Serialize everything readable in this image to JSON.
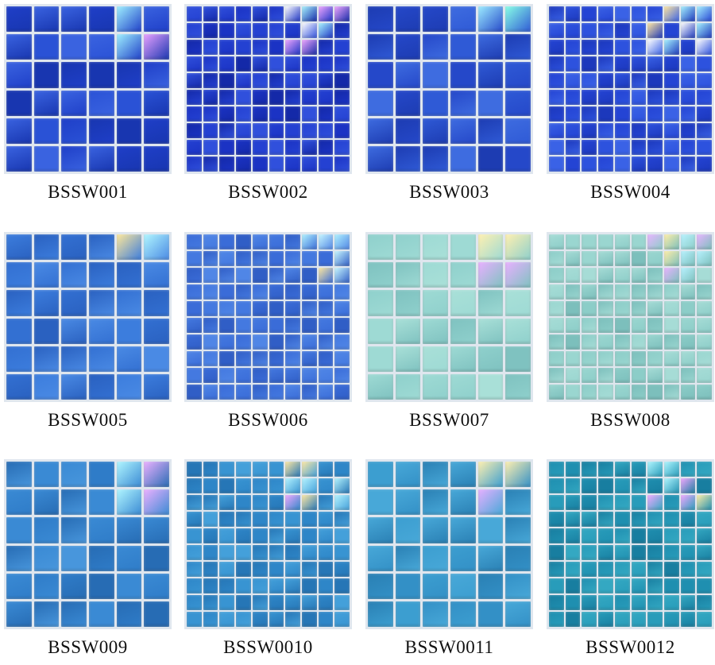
{
  "products": [
    {
      "code": "BSSW001",
      "grid": 6,
      "colors": [
        "#1f3fc8",
        "#2a52d6",
        "#1836b0",
        "#3a63e0"
      ],
      "iridescent": [
        "#9ef0ff",
        "#e8a0ff",
        "#7dffe0"
      ],
      "accent": "top-right"
    },
    {
      "code": "BSSW002",
      "grid": 10,
      "colors": [
        "#1b33c4",
        "#2441d2",
        "#1429a8",
        "#3050dc"
      ],
      "iridescent": [
        "#a8f4ff",
        "#f0a6ff",
        "#ffffff"
      ],
      "accent": "top-right"
    },
    {
      "code": "BSSW003",
      "grid": 6,
      "colors": [
        "#2548c9",
        "#2f5ad6",
        "#1d3cb2",
        "#3e6ce0"
      ],
      "iridescent": [
        "#9cecff",
        "#e6a2ff",
        "#88ffe6"
      ],
      "accent": "top-right"
    },
    {
      "code": "BSSW004",
      "grid": 10,
      "colors": [
        "#2444d4",
        "#2d52de",
        "#1c38bc",
        "#3a62e6"
      ],
      "iridescent": [
        "#ffffff",
        "#a6f2ff",
        "#ffe6a0"
      ],
      "accent": "top-right"
    },
    {
      "code": "BSSW005",
      "grid": 6,
      "colors": [
        "#3370d2",
        "#3c7ddd",
        "#2a61c0",
        "#4a8ae4"
      ],
      "iridescent": [
        "#b0f6ff",
        "#ffe89a",
        "#9ef8ff"
      ],
      "accent": "top-right"
    },
    {
      "code": "BSSW006",
      "grid": 10,
      "colors": [
        "#3a6cd8",
        "#4479e0",
        "#305ec6",
        "#5086e6"
      ],
      "iridescent": [
        "#c8f8ff",
        "#ffe9a0",
        "#b0f2ff"
      ],
      "accent": "top-right"
    },
    {
      "code": "BSSW007",
      "grid": 6,
      "colors": [
        "#8fd0cc",
        "#9edad4",
        "#7fc2c0",
        "#a9e0d8"
      ],
      "iridescent": [
        "#e8b0ff",
        "#fff0b0",
        "#b6f2ff"
      ],
      "accent": "top-right"
    },
    {
      "code": "BSSW008",
      "grid": 10,
      "colors": [
        "#8ccdc8",
        "#9ad6d0",
        "#7cbfbc",
        "#a6dcd6"
      ],
      "iridescent": [
        "#b8f2ff",
        "#ffeea8",
        "#e8b4ff"
      ],
      "accent": "top-right"
    },
    {
      "code": "BSSW009",
      "grid": 6,
      "colors": [
        "#2f7cc8",
        "#3a8ad4",
        "#276cb4",
        "#4896dc"
      ],
      "iridescent": [
        "#fff2a8",
        "#ecb0ff",
        "#b0f6ff"
      ],
      "accent": "top-right"
    },
    {
      "code": "BSSW0010",
      "grid": 10,
      "colors": [
        "#2e86c8",
        "#3894d2",
        "#2676b6",
        "#44a0da"
      ],
      "iridescent": [
        "#ffe9a4",
        "#f0a8ff",
        "#b4f4ff"
      ],
      "accent": "top-right"
    },
    {
      "code": "BSSW0011",
      "grid": 6,
      "colors": [
        "#3390c6",
        "#3c9ed0",
        "#2a80b4",
        "#48a8d8"
      ],
      "iridescent": [
        "#b6f8ff",
        "#e6b0ff",
        "#fff0b0"
      ],
      "accent": "top-right"
    },
    {
      "code": "BSSW0012",
      "grid": 10,
      "colors": [
        "#1f8fb0",
        "#289cba",
        "#187ea0",
        "#34a8c2"
      ],
      "iridescent": [
        "#f2a8ff",
        "#ffeea8",
        "#b0f6ff"
      ],
      "accent": "top-right"
    }
  ]
}
